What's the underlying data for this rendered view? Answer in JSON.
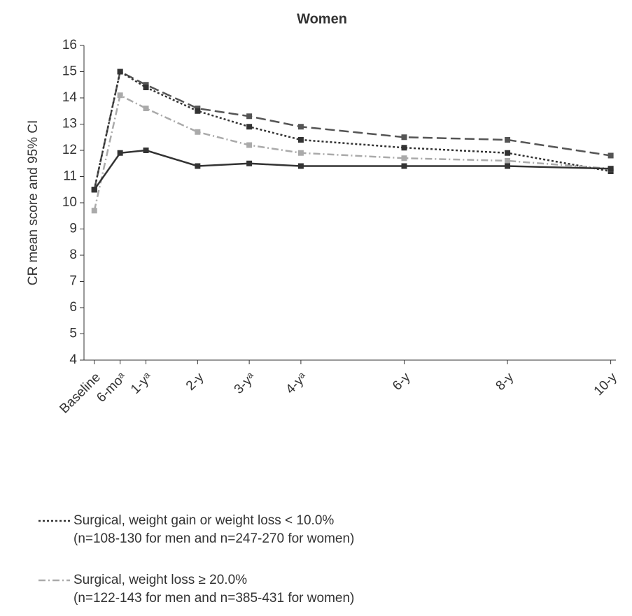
{
  "chart_data": {
    "type": "line",
    "title": "Women",
    "y_label": "CR mean score and 95% CI",
    "x": [
      0,
      0.5,
      1,
      2,
      3,
      4,
      6,
      8,
      10
    ],
    "xlim": [
      -0.2,
      10.1
    ],
    "xticks": [
      {
        "value": 0,
        "label": "Baseline"
      },
      {
        "value": 0.5,
        "label": "6-moᵃ"
      },
      {
        "value": 1,
        "label": "1-yᵃ"
      },
      {
        "value": 2,
        "label": "2-y"
      },
      {
        "value": 3,
        "label": "3-yᵃ"
      },
      {
        "value": 4,
        "label": "4-yᵃ"
      },
      {
        "value": 6,
        "label": "6-y"
      },
      {
        "value": 8,
        "label": "8-y"
      },
      {
        "value": 10,
        "label": "10-y"
      }
    ],
    "ylim": [
      4,
      16
    ],
    "yticks": [
      4,
      5,
      6,
      7,
      8,
      9,
      10,
      11,
      12,
      13,
      14,
      15,
      16
    ],
    "series": [
      {
        "color": "#555555",
        "dash": "14 6",
        "values": [
          10.5,
          15.0,
          14.5,
          13.6,
          13.3,
          12.9,
          12.5,
          12.4,
          11.8
        ]
      },
      {
        "name": "Surgical, weight gain or weight loss < 10.0%",
        "sample": "(n=108-130 for men and n=247-270 for women)",
        "color": "#333333",
        "dash": "3 3",
        "values": [
          10.5,
          15.0,
          14.4,
          13.5,
          12.9,
          12.4,
          12.1,
          11.9,
          11.2
        ]
      },
      {
        "name": "Surgical, weight loss ≥ 20.0%",
        "sample": "(n=122-143 for men and n=385-431 for women)",
        "color": "#aaaaaa",
        "dash": "10 4 2 4",
        "values": [
          9.7,
          14.1,
          13.6,
          12.7,
          12.2,
          11.9,
          11.7,
          11.6,
          11.3
        ]
      },
      {
        "color": "#333333",
        "dash": "",
        "values": [
          10.5,
          11.9,
          12.0,
          11.4,
          11.5,
          11.4,
          11.4,
          11.4,
          11.3
        ]
      }
    ]
  }
}
